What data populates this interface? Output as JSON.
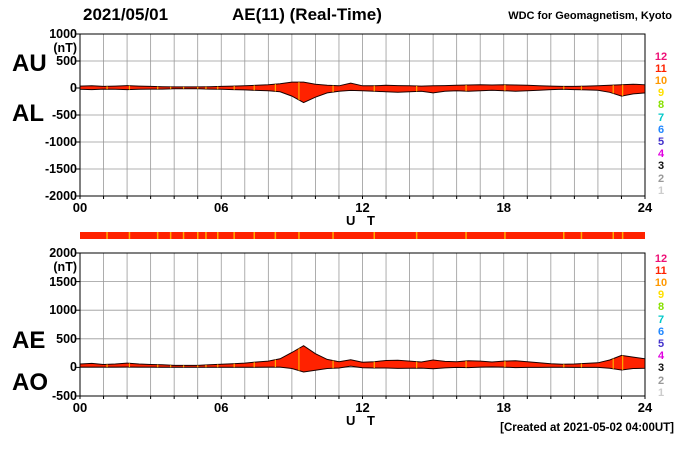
{
  "header": {
    "date": "2021/05/01",
    "title": "AE(11) (Real-Time)",
    "credit": "WDC for Geomagnetism, Kyoto"
  },
  "footer": {
    "created": "[Created at 2021-05-02 04:00UT]"
  },
  "colors": {
    "fill": "#ff2200",
    "outline": "#1a0000",
    "grid": "#999999",
    "frame": "#000000"
  },
  "station_count_scale": [
    {
      "n": "12",
      "color": "#ee1177"
    },
    {
      "n": "11",
      "color": "#ff2200"
    },
    {
      "n": "10",
      "color": "#ff9900"
    },
    {
      "n": "9",
      "color": "#ffe000"
    },
    {
      "n": "8",
      "color": "#88e000"
    },
    {
      "n": "7",
      "color": "#00c8c8"
    },
    {
      "n": "6",
      "color": "#2288ff"
    },
    {
      "n": "5",
      "color": "#4433cc"
    },
    {
      "n": "4",
      "color": "#e000e0"
    },
    {
      "n": "3",
      "color": "#111111"
    },
    {
      "n": "2",
      "color": "#999999"
    },
    {
      "n": "1",
      "color": "#cccccc"
    }
  ],
  "availability_bar": {
    "color": "#ff2200",
    "gap_color": "#ffaa00",
    "gap_marks_hours": [
      1.15,
      2.1,
      3.3,
      3.85,
      4.4,
      5.0,
      5.35,
      5.85,
      6.55,
      7.4,
      8.3,
      9.3,
      10.75,
      12.5,
      14.3,
      16.4,
      18.05,
      20.55,
      21.3,
      22.65,
      23.05
    ]
  },
  "panels": [
    {
      "id": "au-al",
      "side_labels": [
        "AU",
        "AL"
      ],
      "unit": "(nT)",
      "y_ticks": [
        "1000",
        "500",
        "0",
        "-500",
        "-1000",
        "-1500",
        "-2000"
      ],
      "x_ticks": [
        "00",
        "06",
        "12",
        "18",
        "24"
      ],
      "x_axis_label": "U T"
    },
    {
      "id": "ae-ao",
      "side_labels": [
        "AE",
        "AO"
      ],
      "unit": "(nT)",
      "y_ticks": [
        "2000",
        "1500",
        "1000",
        "500",
        "0",
        "-500"
      ],
      "x_ticks": [
        "00",
        "06",
        "12",
        "18",
        "24"
      ],
      "x_axis_label": "U T"
    }
  ],
  "chart_data": [
    {
      "type": "area",
      "title": "AU / AL auroral electrojet indices, 2021/05/01, 11 stations, real-time",
      "xlabel": "U T",
      "ylabel": "(nT)",
      "x_range": [
        0,
        24
      ],
      "ylim": [
        -2000,
        1000
      ],
      "grid": true,
      "x_hours": [
        0,
        0.5,
        1,
        1.5,
        2,
        2.5,
        3,
        3.5,
        4,
        4.5,
        5,
        5.5,
        6,
        6.5,
        7,
        7.5,
        8,
        8.5,
        9,
        9.5,
        10,
        10.5,
        11,
        11.5,
        12,
        12.5,
        13,
        13.5,
        14,
        14.5,
        15,
        15.5,
        16,
        16.5,
        17,
        17.5,
        18,
        18.5,
        19,
        19.5,
        20,
        20.5,
        21,
        21.5,
        22,
        22.5,
        23,
        23.5,
        24
      ],
      "series": [
        {
          "name": "AU",
          "values": [
            35,
            40,
            30,
            35,
            45,
            35,
            30,
            25,
            20,
            20,
            20,
            25,
            30,
            35,
            40,
            50,
            60,
            80,
            110,
            110,
            70,
            50,
            40,
            90,
            40,
            40,
            50,
            45,
            40,
            35,
            40,
            45,
            50,
            55,
            60,
            55,
            60,
            55,
            50,
            40,
            35,
            30,
            30,
            35,
            40,
            50,
            60,
            70,
            60
          ]
        },
        {
          "name": "AL",
          "values": [
            -25,
            -30,
            -20,
            -25,
            -30,
            -25,
            -20,
            -20,
            -15,
            -15,
            -15,
            -20,
            -25,
            -30,
            -35,
            -45,
            -50,
            -70,
            -150,
            -270,
            -170,
            -90,
            -60,
            -45,
            -50,
            -60,
            -70,
            -80,
            -70,
            -60,
            -90,
            -60,
            -50,
            -60,
            -50,
            -40,
            -50,
            -60,
            -50,
            -40,
            -30,
            -25,
            -30,
            -35,
            -40,
            -80,
            -150,
            -110,
            -90
          ]
        }
      ]
    },
    {
      "type": "area",
      "title": "AE / AO auroral electrojet indices, 2021/05/01, 11 stations, real-time",
      "xlabel": "U T",
      "ylabel": "(nT)",
      "x_range": [
        0,
        24
      ],
      "ylim": [
        -500,
        2000
      ],
      "grid": true,
      "x_hours": [
        0,
        0.5,
        1,
        1.5,
        2,
        2.5,
        3,
        3.5,
        4,
        4.5,
        5,
        5.5,
        6,
        6.5,
        7,
        7.5,
        8,
        8.5,
        9,
        9.5,
        10,
        10.5,
        11,
        11.5,
        12,
        12.5,
        13,
        13.5,
        14,
        14.5,
        15,
        15.5,
        16,
        16.5,
        17,
        17.5,
        18,
        18.5,
        19,
        19.5,
        20,
        20.5,
        21,
        21.5,
        22,
        22.5,
        23,
        23.5,
        24
      ],
      "series": [
        {
          "name": "AE",
          "values": [
            60,
            70,
            50,
            60,
            75,
            60,
            50,
            45,
            35,
            35,
            35,
            45,
            55,
            65,
            75,
            95,
            110,
            150,
            260,
            380,
            240,
            140,
            100,
            135,
            90,
            100,
            120,
            125,
            110,
            95,
            130,
            105,
            100,
            115,
            110,
            95,
            110,
            115,
            100,
            80,
            65,
            55,
            60,
            70,
            80,
            130,
            210,
            180,
            150
          ]
        },
        {
          "name": "AO",
          "values": [
            5,
            5,
            5,
            5,
            7,
            5,
            5,
            2,
            2,
            2,
            2,
            2,
            2,
            2,
            2,
            2,
            5,
            5,
            -20,
            -80,
            -50,
            -20,
            -10,
            22,
            -5,
            -10,
            -10,
            -18,
            -15,
            -13,
            -25,
            -8,
            0,
            -3,
            5,
            8,
            5,
            -3,
            0,
            0,
            3,
            3,
            0,
            0,
            0,
            -15,
            -45,
            -20,
            -15
          ]
        }
      ]
    }
  ]
}
